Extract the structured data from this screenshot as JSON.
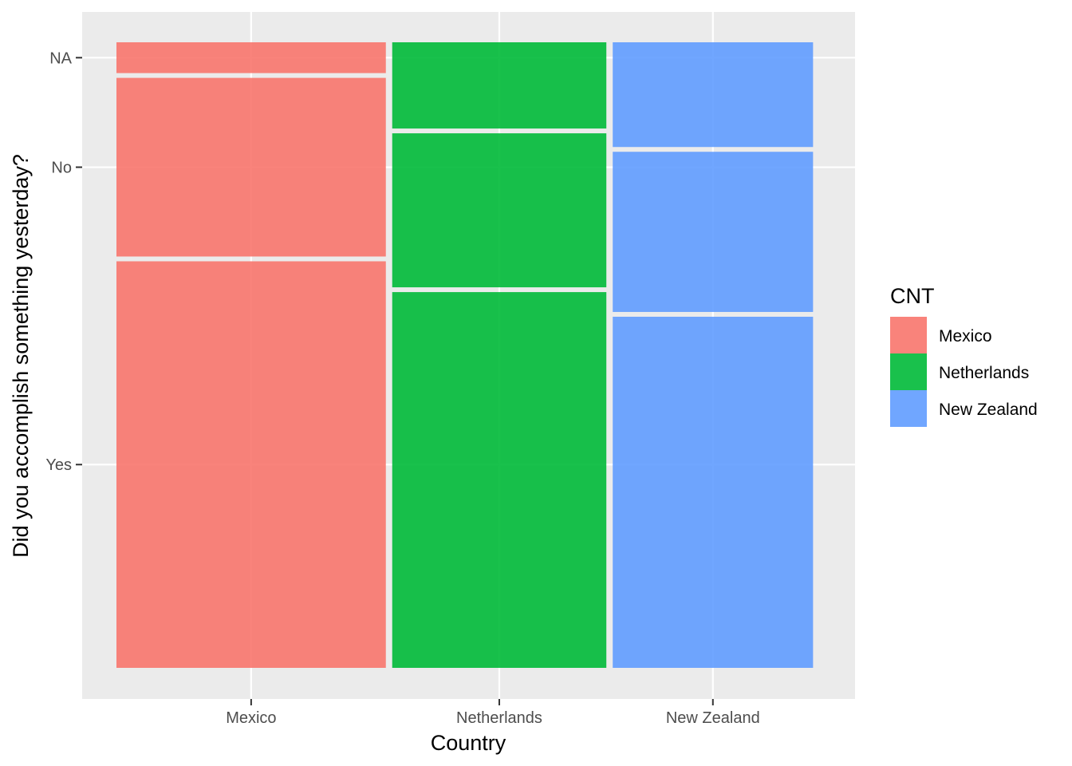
{
  "chart_data": {
    "type": "mosaic",
    "xlabel": "Country",
    "ylabel": "Did you accomplish something yesterday?",
    "x_ticks": [
      "Mexico",
      "Netherlands",
      "New Zealand"
    ],
    "y_ticks": [
      "Yes",
      "No",
      "NA"
    ],
    "legend": {
      "title": "CNT",
      "position": "right",
      "entries": [
        {
          "label": "Mexico",
          "color": "#F8766D"
        },
        {
          "label": "Netherlands",
          "color": "#00BA38"
        },
        {
          "label": "New Zealand",
          "color": "#619CFF"
        }
      ]
    },
    "column_shares": [
      0.39,
      0.31,
      0.29
    ],
    "categories": [
      "Yes",
      "No",
      "NA"
    ],
    "series": [
      {
        "name": "Mexico",
        "color": "#F8766D",
        "values": [
          0.66,
          0.29,
          0.05
        ]
      },
      {
        "name": "Netherlands",
        "color": "#00BA38",
        "values": [
          0.61,
          0.25,
          0.14
        ]
      },
      {
        "name": "New Zealand",
        "color": "#619CFF",
        "values": [
          0.57,
          0.26,
          0.17
        ]
      }
    ],
    "grid": true,
    "background": "#EBEBEB"
  }
}
